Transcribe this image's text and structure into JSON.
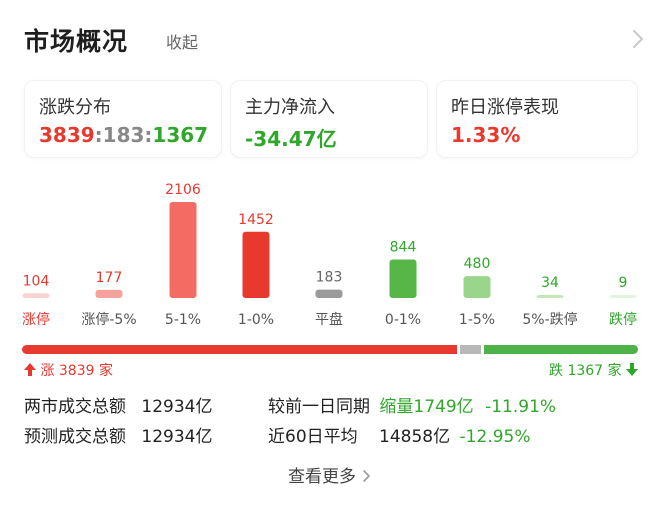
{
  "header": {
    "title": "市场概况",
    "collapse_label": "收起"
  },
  "cards": {
    "distribution": {
      "label": "涨跌分布",
      "up": "3839",
      "sep1": ":",
      "flat": "183",
      "sep2": ":",
      "down": "1367"
    },
    "net_inflow": {
      "label": "主力净流入",
      "value": "-34.47亿"
    },
    "limit_up_perf": {
      "label": "昨日涨停表现",
      "value": "1.33%"
    }
  },
  "chart_data": {
    "type": "bar",
    "categories": [
      "涨停",
      "涨停-5%",
      "5-1%",
      "1-0%",
      "平盘",
      "0-1%",
      "1-5%",
      "5%-跌停",
      "跌停"
    ],
    "values": [
      104,
      177,
      2106,
      1452,
      183,
      844,
      480,
      34,
      9
    ],
    "colors": [
      "#f9d3d1",
      "#f5a29d",
      "#f36b62",
      "#e8392f",
      "#9b9b9b",
      "#58b548",
      "#9ad58c",
      "#c2e8b8",
      "#e3f4dd"
    ],
    "value_label_colors": [
      "#e8392f",
      "#e8392f",
      "#e8392f",
      "#e8392f",
      "#666666",
      "#2fa72a",
      "#2fa72a",
      "#2fa72a",
      "#2fa72a"
    ],
    "category_label_colors": [
      "#e8392f",
      "#555555",
      "#555555",
      "#555555",
      "#555555",
      "#555555",
      "#555555",
      "#555555",
      "#2fa72a"
    ],
    "title": "",
    "xlabel": "",
    "ylabel": ""
  },
  "range_bar": {
    "up_count": 3839,
    "flat_count": 183,
    "down_count": 1367,
    "up_label": "涨 3839 家",
    "down_label": "跌 1367 家",
    "up_color": "#e8392f",
    "flat_color": "#b8b8b8",
    "down_color": "#4fb248"
  },
  "stats": {
    "turnover_label": "两市成交总额",
    "turnover_value": "12934亿",
    "compare_label": "较前一日同期",
    "compare_tag": "缩量",
    "compare_value": "1749亿",
    "compare_pct": "-11.91%",
    "forecast_label": "预测成交总额",
    "forecast_value": "12934亿",
    "avg60_label": "近60日平均",
    "avg60_value": "14858亿",
    "avg60_pct": "-12.95%"
  },
  "more_label": "查看更多",
  "icons": [
    "chevron-right-icon",
    "arrow-up-icon",
    "arrow-down-icon"
  ]
}
